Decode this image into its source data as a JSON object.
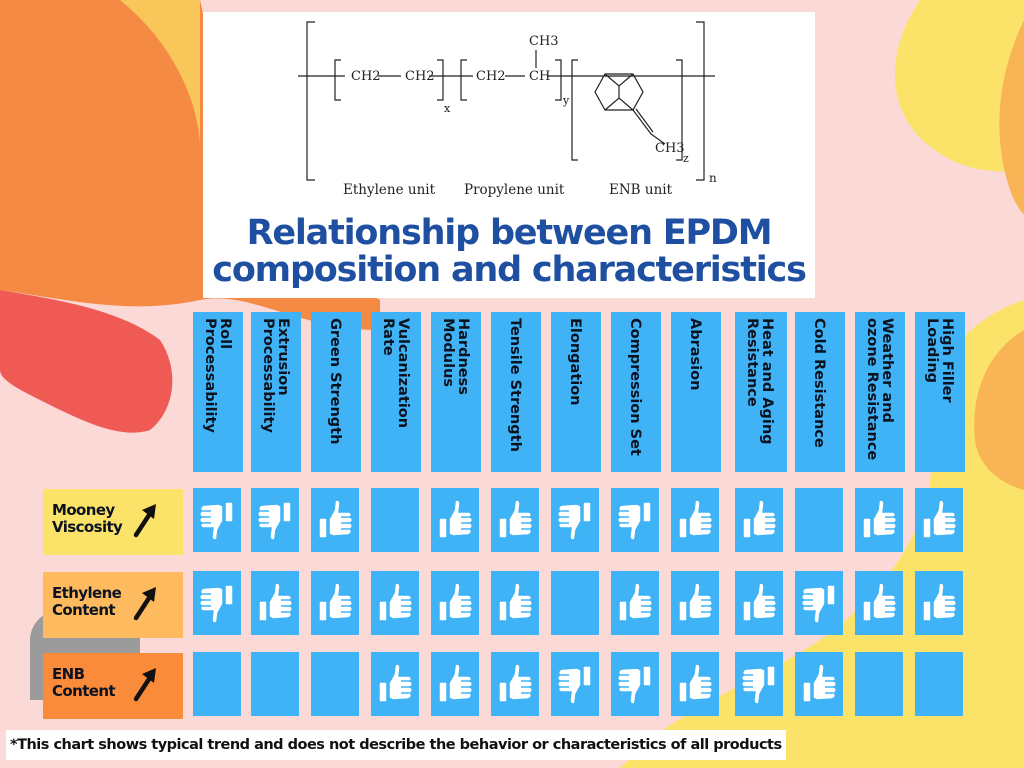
{
  "formula": {
    "units": [
      "CH2",
      "CH2",
      "CH2",
      "CH",
      "CH3",
      "CH3"
    ],
    "subscripts": {
      "x": "x",
      "y": "y",
      "z": "z",
      "n": "n"
    },
    "unit_labels": [
      "Ethylene unit",
      "Propylene unit",
      "ENB unit"
    ]
  },
  "title": {
    "line1": "Relationship between EPDM",
    "line2": "composition and characteristics"
  },
  "columns": [
    "Roll Processability",
    "Extrusion Processability",
    "Green Strength",
    "Vulcanization Rate",
    "Hardness Modulus",
    "Tensile Strength",
    "Elongation",
    "Compression Set",
    "Abrasion",
    "Heat and Aging Resistance",
    "Cold Resistance",
    "Weather and ozone Resistance",
    "High Filler Loading"
  ],
  "rows": [
    {
      "label1": "Mooney",
      "label2": "Viscosity",
      "color": "#fbe36a",
      "cells": [
        "down",
        "down",
        "up",
        "none",
        "up",
        "up",
        "down",
        "down",
        "up",
        "up",
        "none",
        "up",
        "up"
      ]
    },
    {
      "label1": "Ethylene",
      "label2": "Content",
      "color": "#fdba5e",
      "cells": [
        "down",
        "up",
        "up",
        "up",
        "up",
        "up",
        "none",
        "up",
        "up",
        "up",
        "down",
        "up",
        "up"
      ]
    },
    {
      "label1": "ENB",
      "label2": "Content",
      "color": "#f98b3a",
      "cells": [
        "none",
        "none",
        "none",
        "up",
        "up",
        "up",
        "down",
        "down",
        "up",
        "down",
        "up",
        "none",
        "none"
      ]
    }
  ],
  "icons": {
    "up": "thumbs-up-icon",
    "down": "thumbs-down-icon",
    "arrow": "arrow-up-right-icon"
  },
  "colors": {
    "cell_blue": "#3fb3f5",
    "title_blue": "#1f4fa0",
    "background": "#fbd9d6"
  },
  "footnote": "*This chart shows typical trend and does not describe the behavior or characteristics of all products"
}
